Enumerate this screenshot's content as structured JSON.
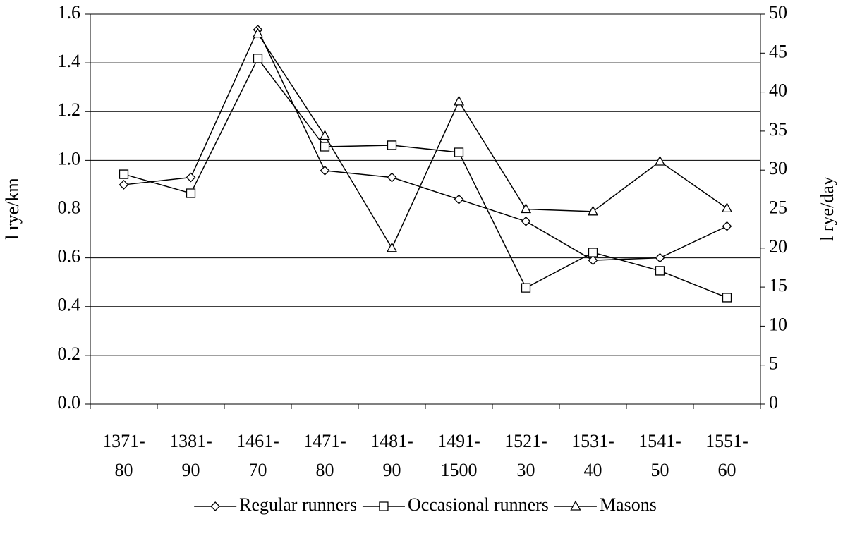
{
  "chart_data": {
    "type": "line",
    "categories": [
      "1371-80",
      "1381-90",
      "1461-70",
      "1471-80",
      "1481-90",
      "1491-1500",
      "1521-30",
      "1531-40",
      "1541-50",
      "1551-60"
    ],
    "ylabel": "l rye/km",
    "y2label": "l rye/day",
    "ylim": [
      0,
      1.6
    ],
    "yticks": [
      {
        "value": 0,
        "label": "0.0"
      },
      0.2,
      0.4,
      0.6,
      0.8,
      {
        "value": 1,
        "label": "1.0"
      },
      1.2,
      1.4,
      1.6
    ],
    "y2lim": [
      0,
      50
    ],
    "y2ticks": [
      0,
      5,
      10,
      15,
      20,
      25,
      30,
      35,
      40,
      45,
      50
    ],
    "grid": true,
    "legend": "bottom",
    "series": [
      {
        "name": "Regular runners",
        "color": "#000000",
        "marker": "diamond",
        "values": [
          0.9,
          0.93,
          1.536,
          0.958,
          0.93,
          0.84,
          0.75,
          0.59,
          0.6,
          0.73
        ]
      },
      {
        "name": "Occasional runners",
        "color": "#000000",
        "marker": "square",
        "values": [
          0.943,
          0.865,
          1.418,
          1.056,
          1.062,
          1.033,
          0.477,
          0.622,
          0.547,
          0.437
        ]
      },
      {
        "name": "Masons",
        "color": "#000000",
        "marker": "triangle",
        "axis": "y2",
        "values": [
          null,
          null,
          47.5,
          34.4,
          20,
          38.8,
          25,
          24.7,
          31.1,
          25.1
        ]
      }
    ]
  }
}
